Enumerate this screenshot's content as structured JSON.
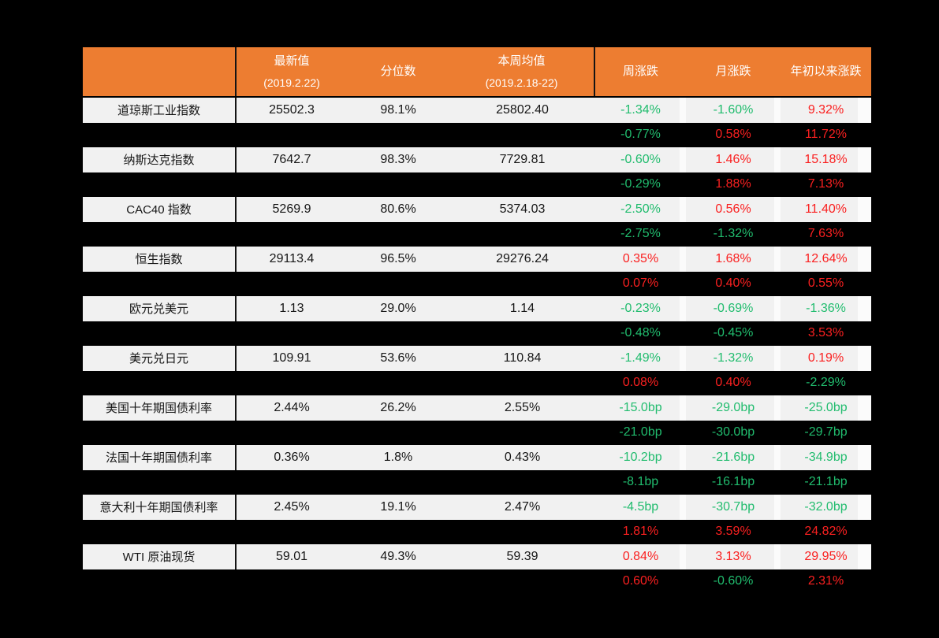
{
  "page": {
    "background": "#000000"
  },
  "chart_data": {
    "type": "table",
    "title": "",
    "colors": {
      "header_bg": "#ed7d31",
      "header_text": "#ffffff",
      "light_row_bg": "#f1f1f1",
      "dark_row_bg": "#000000",
      "up_red": "#fa2020",
      "down_green": "#21bc6e"
    },
    "header": {
      "asset_column_label": "",
      "columns": [
        {
          "key": "latest",
          "label": "最新值",
          "sub": "(2019.2.22)"
        },
        {
          "key": "pctile",
          "label": "分位数",
          "sub": ""
        },
        {
          "key": "weekavg",
          "label": "本周均值",
          "sub": "(2019.2.18-22)"
        },
        {
          "key": "week",
          "label": "周涨跌",
          "sub": ""
        },
        {
          "key": "month",
          "label": "月涨跌",
          "sub": ""
        },
        {
          "key": "ytd",
          "label": "年初以来涨跌",
          "sub": ""
        }
      ]
    },
    "rows": [
      {
        "type": "light",
        "name": "道琼斯工业指数",
        "latest": "25502.3",
        "pctile": "98.1%",
        "weekavg": "25802.40",
        "week": "-1.34%",
        "month": "-1.60%",
        "ytd": "9.32%"
      },
      {
        "type": "dark",
        "name": "",
        "latest": "",
        "pctile": "",
        "weekavg": "",
        "week": "-0.77%",
        "month": "0.58%",
        "ytd": "11.72%"
      },
      {
        "type": "light",
        "name": "纳斯达克指数",
        "latest": "7642.7",
        "pctile": "98.3%",
        "weekavg": "7729.81",
        "week": "-0.60%",
        "month": "1.46%",
        "ytd": "15.18%"
      },
      {
        "type": "dark",
        "name": "",
        "latest": "",
        "pctile": "",
        "weekavg": "",
        "week": "-0.29%",
        "month": "1.88%",
        "ytd": "7.13%"
      },
      {
        "type": "light",
        "name": "CAC40 指数",
        "latest": "5269.9",
        "pctile": "80.6%",
        "weekavg": "5374.03",
        "week": "-2.50%",
        "month": "0.56%",
        "ytd": "11.40%"
      },
      {
        "type": "dark",
        "name": "",
        "latest": "",
        "pctile": "",
        "weekavg": "",
        "week": "-2.75%",
        "month": "-1.32%",
        "ytd": "7.63%"
      },
      {
        "type": "light",
        "name": "恒生指数",
        "latest": "29113.4",
        "pctile": "96.5%",
        "weekavg": "29276.24",
        "week": "0.35%",
        "month": "1.68%",
        "ytd": "12.64%"
      },
      {
        "type": "dark",
        "name": "",
        "latest": "",
        "pctile": "",
        "weekavg": "",
        "week": "0.07%",
        "month": "0.40%",
        "ytd": "0.55%"
      },
      {
        "type": "light",
        "name": "欧元兑美元",
        "latest": "1.13",
        "pctile": "29.0%",
        "weekavg": "1.14",
        "week": "-0.23%",
        "month": "-0.69%",
        "ytd": "-1.36%"
      },
      {
        "type": "dark",
        "name": "",
        "latest": "",
        "pctile": "",
        "weekavg": "",
        "week": "-0.48%",
        "month": "-0.45%",
        "ytd": "3.53%"
      },
      {
        "type": "light",
        "name": "美元兑日元",
        "latest": "109.91",
        "pctile": "53.6%",
        "weekavg": "110.84",
        "week": "-1.49%",
        "month": "-1.32%",
        "ytd": "0.19%"
      },
      {
        "type": "dark",
        "name": "",
        "latest": "",
        "pctile": "",
        "weekavg": "",
        "week": "0.08%",
        "month": "0.40%",
        "ytd": "-2.29%"
      },
      {
        "type": "light",
        "name": "美国十年期国债利率",
        "latest": "2.44%",
        "pctile": "26.2%",
        "weekavg": "2.55%",
        "week": "-15.0bp",
        "month": "-29.0bp",
        "ytd": "-25.0bp"
      },
      {
        "type": "dark",
        "name": "",
        "latest": "",
        "pctile": "",
        "weekavg": "",
        "week": "-21.0bp",
        "month": "-30.0bp",
        "ytd": "-29.7bp"
      },
      {
        "type": "light",
        "name": "法国十年期国债利率",
        "latest": "0.36%",
        "pctile": "1.8%",
        "weekavg": "0.43%",
        "week": "-10.2bp",
        "month": "-21.6bp",
        "ytd": "-34.9bp"
      },
      {
        "type": "dark",
        "name": "",
        "latest": "",
        "pctile": "",
        "weekavg": "",
        "week": "-8.1bp",
        "month": "-16.1bp",
        "ytd": "-21.1bp"
      },
      {
        "type": "light",
        "name": "意大利十年期国债利率",
        "latest": "2.45%",
        "pctile": "19.1%",
        "weekavg": "2.47%",
        "week": "-4.5bp",
        "month": "-30.7bp",
        "ytd": "-32.0bp"
      },
      {
        "type": "dark",
        "name": "",
        "latest": "",
        "pctile": "",
        "weekavg": "",
        "week": "1.81%",
        "month": "3.59%",
        "ytd": "24.82%"
      },
      {
        "type": "light",
        "name": "WTI 原油现货",
        "latest": "59.01",
        "pctile": "49.3%",
        "weekavg": "59.39",
        "week": "0.84%",
        "month": "3.13%",
        "ytd": "29.95%"
      },
      {
        "type": "dark",
        "name": "",
        "latest": "",
        "pctile": "",
        "weekavg": "",
        "week": "0.60%",
        "month": "-0.60%",
        "ytd": "2.31%"
      }
    ]
  }
}
